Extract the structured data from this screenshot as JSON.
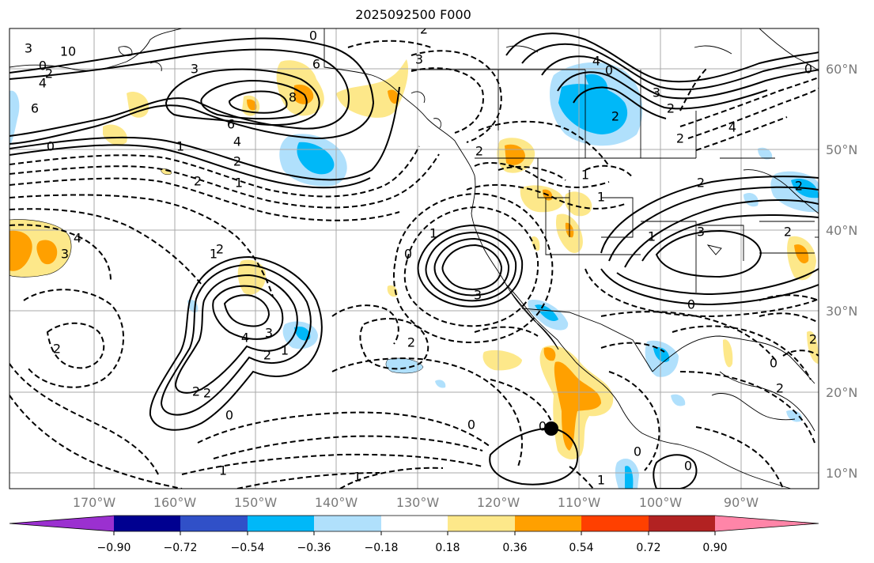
{
  "title": "2025092500 F000",
  "lat_labels": [
    "60°N",
    "50°N",
    "40°N",
    "30°N",
    "20°N",
    "10°N"
  ],
  "lon_labels": [
    "170°W",
    "160°W",
    "150°W",
    "140°W",
    "130°W",
    "120°W",
    "110°W",
    "100°W",
    "90°W"
  ],
  "colorbar": {
    "ticks": [
      "−0.90",
      "−0.72",
      "−0.54",
      "−0.36",
      "−0.18",
      "0.18",
      "0.36",
      "0.54",
      "0.72",
      "0.90"
    ],
    "colors": [
      "#9b30d0",
      "#000090",
      "#3050c8",
      "#00b8f8",
      "#b0e0fc",
      "#ffffff",
      "#fde88a",
      "#ffa000",
      "#ff4000",
      "#b22222",
      "#ff85a8"
    ]
  },
  "contour_labels": [
    "3",
    "10",
    "0",
    "2",
    "4",
    "6",
    "3",
    "6",
    "8",
    "6",
    "4",
    "2",
    "1",
    "2",
    "1",
    "0",
    "1",
    "2",
    "4",
    "3",
    "2",
    "4",
    "3",
    "2",
    "2",
    "1",
    "2",
    "2",
    "0",
    "4",
    "3",
    "2",
    "0",
    "2",
    "2",
    "3",
    "2",
    "2",
    "0",
    "1",
    "3",
    "0",
    "4",
    "1",
    "0",
    "3",
    "2",
    "0",
    "2",
    "0",
    "2",
    "1",
    "1",
    "0",
    "1",
    "0",
    "0",
    "1",
    "0",
    "2",
    "2",
    "1"
  ],
  "marker": "storm-center-dot"
}
